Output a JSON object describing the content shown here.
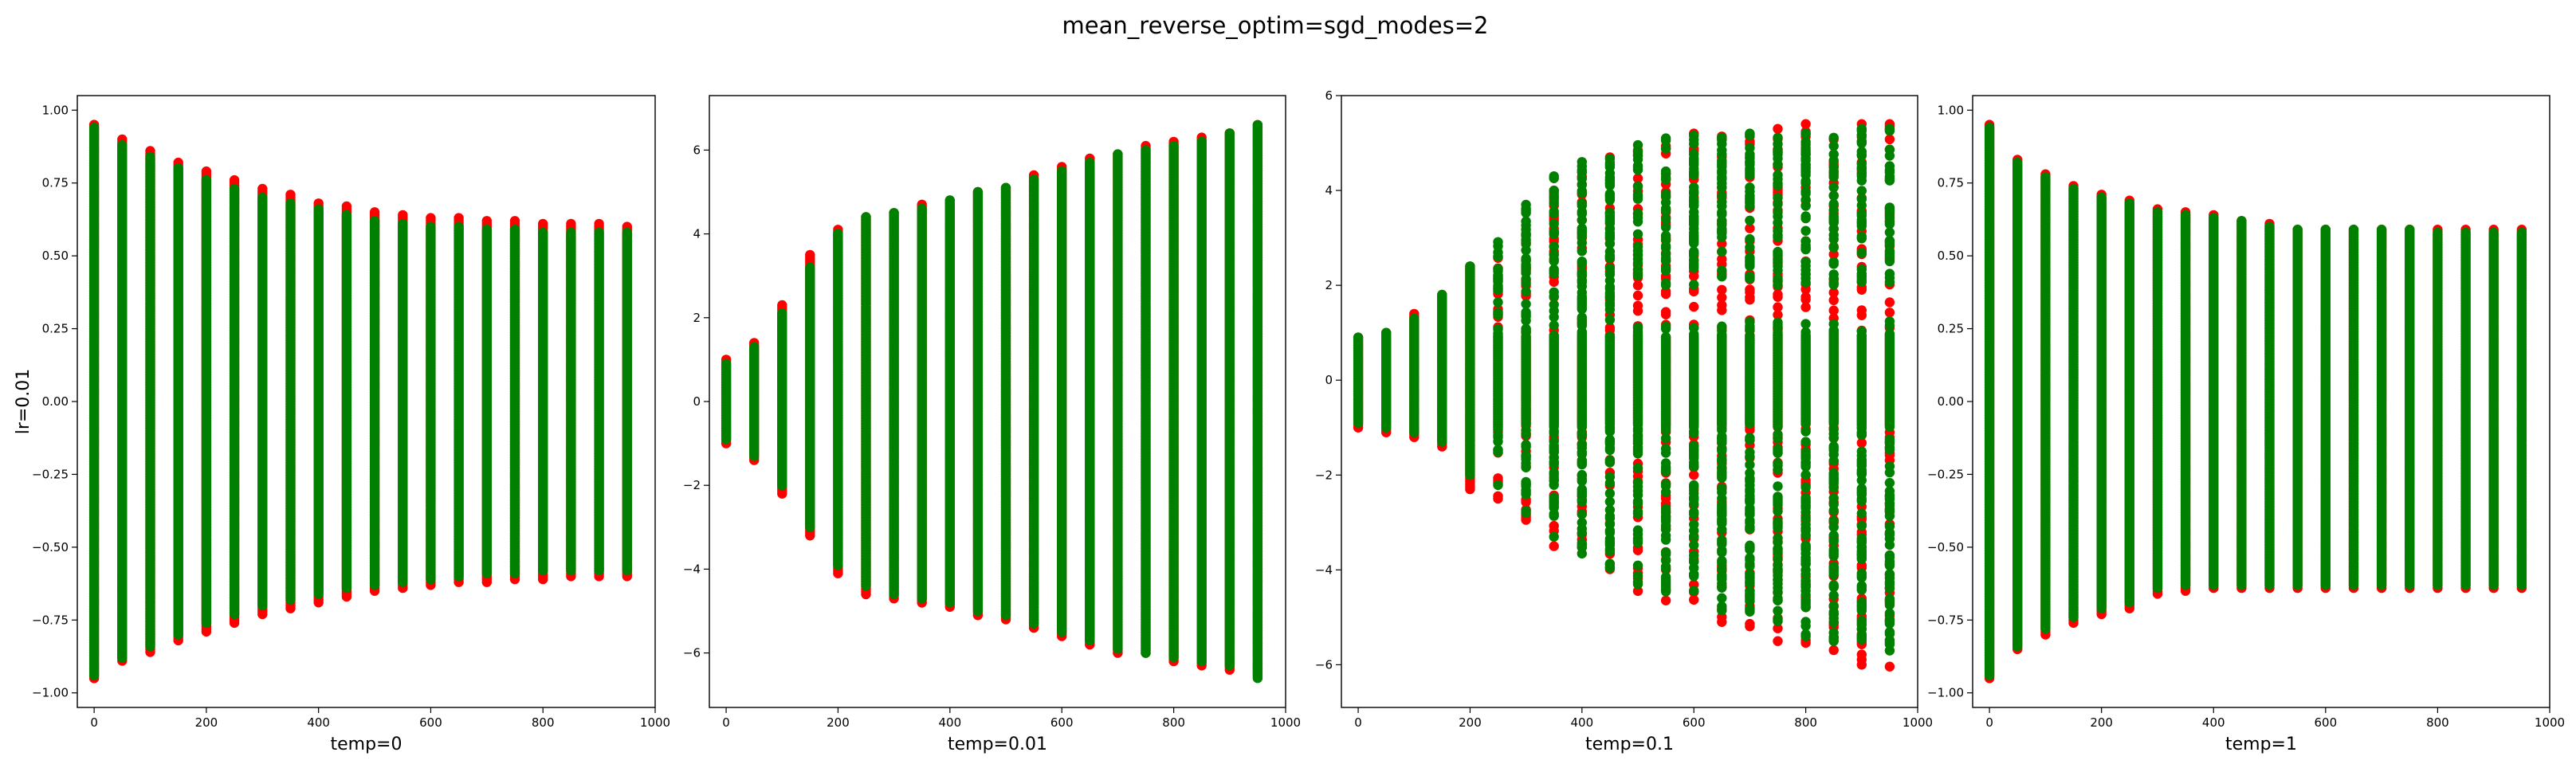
{
  "figure": {
    "title": "mean_reverse_optim=sgd_modes=2",
    "row_label": "lr=0.01"
  },
  "colors": {
    "red_series": "#ff0000",
    "green_series": "#008000"
  },
  "chart_data": [
    {
      "type": "scatter",
      "xlabel": "temp=0",
      "ylabel": "lr=0.01",
      "xlim": [
        -30,
        1000
      ],
      "ylim": [
        -1.05,
        1.05
      ],
      "xticks": [
        0,
        200,
        400,
        600,
        800,
        1000
      ],
      "yticks": [
        -1.0,
        -0.75,
        -0.5,
        -0.25,
        0.0,
        0.25,
        0.5,
        0.75,
        1.0
      ],
      "ytick_labels": [
        "−1.00",
        "−0.75",
        "−0.50",
        "−0.25",
        "0.00",
        "0.25",
        "0.50",
        "0.75",
        "1.00"
      ],
      "grid": false,
      "x_steps": [
        0,
        50,
        100,
        150,
        200,
        250,
        300,
        350,
        400,
        450,
        500,
        550,
        600,
        650,
        700,
        750,
        800,
        850,
        900,
        950
      ],
      "series": [
        {
          "color": "red",
          "kind": "column_extent",
          "min": [
            -0.95,
            -0.89,
            -0.86,
            -0.82,
            -0.79,
            -0.76,
            -0.73,
            -0.71,
            -0.69,
            -0.67,
            -0.65,
            -0.64,
            -0.63,
            -0.62,
            -0.62,
            -0.61,
            -0.61,
            -0.6,
            -0.6,
            -0.6
          ],
          "max": [
            0.95,
            0.9,
            0.86,
            0.82,
            0.79,
            0.76,
            0.73,
            0.71,
            0.68,
            0.67,
            0.65,
            0.64,
            0.63,
            0.63,
            0.62,
            0.62,
            0.61,
            0.61,
            0.61,
            0.6
          ]
        },
        {
          "color": "green",
          "kind": "column_extent",
          "min": [
            -0.94,
            -0.88,
            -0.84,
            -0.8,
            -0.76,
            -0.73,
            -0.7,
            -0.68,
            -0.66,
            -0.64,
            -0.63,
            -0.62,
            -0.61,
            -0.6,
            -0.59,
            -0.59,
            -0.58,
            -0.58,
            -0.58,
            -0.58
          ],
          "max": [
            0.94,
            0.88,
            0.84,
            0.8,
            0.76,
            0.73,
            0.7,
            0.68,
            0.66,
            0.64,
            0.62,
            0.61,
            0.6,
            0.6,
            0.59,
            0.59,
            0.58,
            0.58,
            0.58,
            0.58
          ]
        }
      ]
    },
    {
      "type": "scatter",
      "xlabel": "temp=0.01",
      "ylabel": "",
      "xlim": [
        -30,
        1000
      ],
      "ylim": [
        -7.3,
        7.3
      ],
      "xticks": [
        0,
        200,
        400,
        600,
        800,
        1000
      ],
      "yticks": [
        -6,
        -4,
        -2,
        0,
        2,
        4,
        6
      ],
      "ytick_labels": [
        "−6",
        "−4",
        "−2",
        "0",
        "2",
        "4",
        "6"
      ],
      "grid": false,
      "x_steps": [
        0,
        50,
        100,
        150,
        200,
        250,
        300,
        350,
        400,
        450,
        500,
        550,
        600,
        650,
        700,
        750,
        800,
        850,
        900,
        950
      ],
      "series": [
        {
          "color": "red",
          "kind": "column_extent",
          "min": [
            -1.0,
            -1.4,
            -2.2,
            -3.2,
            -4.1,
            -4.6,
            -4.7,
            -4.8,
            -4.9,
            -5.1,
            -5.2,
            -5.4,
            -5.6,
            -5.8,
            -6.0,
            -6.0,
            -6.2,
            -6.3,
            -6.4,
            -6.5
          ],
          "max": [
            1.0,
            1.4,
            2.3,
            3.5,
            4.1,
            4.4,
            4.5,
            4.7,
            4.8,
            5.0,
            5.1,
            5.4,
            5.6,
            5.8,
            5.9,
            6.1,
            6.2,
            6.3,
            6.4,
            6.6
          ]
        },
        {
          "color": "green",
          "kind": "column_extent",
          "min": [
            -0.9,
            -1.3,
            -2.0,
            -3.0,
            -3.9,
            -4.4,
            -4.6,
            -4.7,
            -4.8,
            -5.0,
            -5.1,
            -5.3,
            -5.5,
            -5.7,
            -5.9,
            -6.0,
            -6.1,
            -6.2,
            -6.3,
            -6.6
          ],
          "max": [
            0.9,
            1.3,
            2.1,
            3.2,
            4.0,
            4.4,
            4.5,
            4.6,
            4.8,
            5.0,
            5.1,
            5.3,
            5.5,
            5.7,
            5.9,
            6.0,
            6.1,
            6.2,
            6.4,
            6.6
          ]
        }
      ]
    },
    {
      "type": "scatter",
      "xlabel": "temp=0.1",
      "ylabel": "",
      "xlim": [
        -30,
        1000
      ],
      "ylim": [
        -6.9,
        6.0
      ],
      "xticks": [
        0,
        200,
        400,
        600,
        800,
        1000
      ],
      "yticks": [
        -6,
        -4,
        -2,
        0,
        2,
        4,
        6
      ],
      "ytick_labels": [
        "−6",
        "−4",
        "−2",
        "0",
        "2",
        "4",
        "6"
      ],
      "grid": false,
      "x_steps": [
        0,
        50,
        100,
        150,
        200,
        250,
        300,
        350,
        400,
        450,
        500,
        550,
        600,
        650,
        700,
        750,
        800,
        850,
        900,
        950
      ],
      "core_band": [
        -0.95,
        0.95
      ],
      "series": [
        {
          "color": "red",
          "kind": "column_extent",
          "min": [
            -1.0,
            -1.1,
            -1.2,
            -1.4,
            -2.3,
            -2.5,
            -3.0,
            -3.5,
            -3.9,
            -4.2,
            -4.5,
            -4.7,
            -4.9,
            -5.1,
            -5.3,
            -5.5,
            -5.7,
            -5.8,
            -6.0,
            -6.2
          ],
          "max": [
            0.9,
            1.0,
            1.4,
            1.8,
            2.4,
            2.9,
            3.6,
            4.0,
            4.4,
            4.7,
            4.9,
            5.1,
            5.2,
            5.3,
            5.3,
            5.3,
            5.4,
            5.4,
            5.4,
            5.4
          ]
        },
        {
          "color": "green",
          "kind": "column_extent",
          "min": [
            -0.9,
            -1.0,
            -1.1,
            -1.3,
            -2.0,
            -2.3,
            -2.8,
            -3.3,
            -3.7,
            -4.0,
            -4.3,
            -4.5,
            -4.7,
            -4.9,
            -5.1,
            -5.3,
            -5.4,
            -5.5,
            -5.6,
            -5.7
          ],
          "max": [
            0.9,
            1.0,
            1.3,
            1.8,
            2.4,
            3.0,
            3.7,
            4.3,
            4.6,
            4.8,
            5.0,
            5.1,
            5.2,
            5.2,
            5.2,
            5.2,
            5.2,
            5.2,
            5.3,
            5.3
          ]
        }
      ]
    },
    {
      "type": "scatter",
      "xlabel": "temp=1",
      "ylabel": "",
      "xlim": [
        -30,
        1000
      ],
      "ylim": [
        -1.05,
        1.05
      ],
      "xticks": [
        0,
        200,
        400,
        600,
        800,
        1000
      ],
      "yticks": [
        -1.0,
        -0.75,
        -0.5,
        -0.25,
        0.0,
        0.25,
        0.5,
        0.75,
        1.0
      ],
      "ytick_labels": [
        "−1.00",
        "−0.75",
        "−0.50",
        "−0.25",
        "0.00",
        "0.25",
        "0.50",
        "0.75",
        "1.00"
      ],
      "grid": false,
      "x_steps": [
        0,
        50,
        100,
        150,
        200,
        250,
        300,
        350,
        400,
        450,
        500,
        550,
        600,
        650,
        700,
        750,
        800,
        850,
        900,
        950
      ],
      "series": [
        {
          "color": "red",
          "kind": "column_extent",
          "min": [
            -0.95,
            -0.85,
            -0.8,
            -0.76,
            -0.73,
            -0.71,
            -0.66,
            -0.65,
            -0.64,
            -0.64,
            -0.64,
            -0.64,
            -0.64,
            -0.64,
            -0.64,
            -0.64,
            -0.64,
            -0.64,
            -0.64,
            -0.64
          ],
          "max": [
            0.95,
            0.83,
            0.78,
            0.74,
            0.71,
            0.69,
            0.66,
            0.65,
            0.64,
            0.62,
            0.61,
            0.59,
            0.59,
            0.59,
            0.59,
            0.59,
            0.59,
            0.59,
            0.59,
            0.59
          ]
        },
        {
          "color": "green",
          "kind": "column_extent",
          "min": [
            -0.94,
            -0.84,
            -0.78,
            -0.74,
            -0.71,
            -0.69,
            -0.64,
            -0.63,
            -0.63,
            -0.63,
            -0.63,
            -0.63,
            -0.63,
            -0.63,
            -0.63,
            -0.63,
            -0.63,
            -0.63,
            -0.63,
            -0.63
          ],
          "max": [
            0.94,
            0.82,
            0.77,
            0.73,
            0.7,
            0.68,
            0.65,
            0.64,
            0.63,
            0.62,
            0.6,
            0.59,
            0.59,
            0.59,
            0.59,
            0.59,
            0.58,
            0.58,
            0.58,
            0.58
          ]
        }
      ]
    }
  ]
}
